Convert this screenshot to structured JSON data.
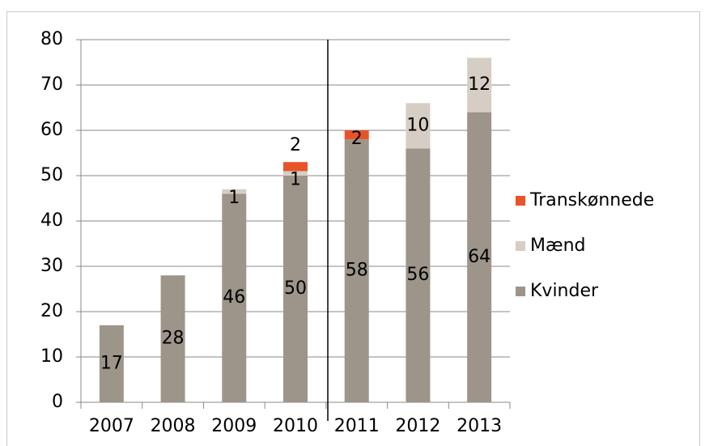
{
  "chart_data": {
    "type": "stacked_bar",
    "categories": [
      "2007",
      "2008",
      "2009",
      "2010",
      "2011",
      "2012",
      "2013"
    ],
    "series": [
      {
        "name": "Kvinder",
        "color": "#9d958a",
        "values": [
          17,
          28,
          46,
          50,
          58,
          56,
          64
        ]
      },
      {
        "name": "Mænd",
        "color": "#d6cec4",
        "values": [
          null,
          null,
          1,
          1,
          null,
          10,
          12
        ]
      },
      {
        "name": "Transkønnede",
        "color": "#e8542a",
        "values": [
          null,
          null,
          null,
          2,
          2,
          null,
          null
        ]
      }
    ],
    "ylim": [
      0,
      80
    ],
    "yticks": [
      0,
      10,
      20,
      30,
      40,
      50,
      60,
      70,
      80
    ],
    "grid": true,
    "legend": "right"
  }
}
